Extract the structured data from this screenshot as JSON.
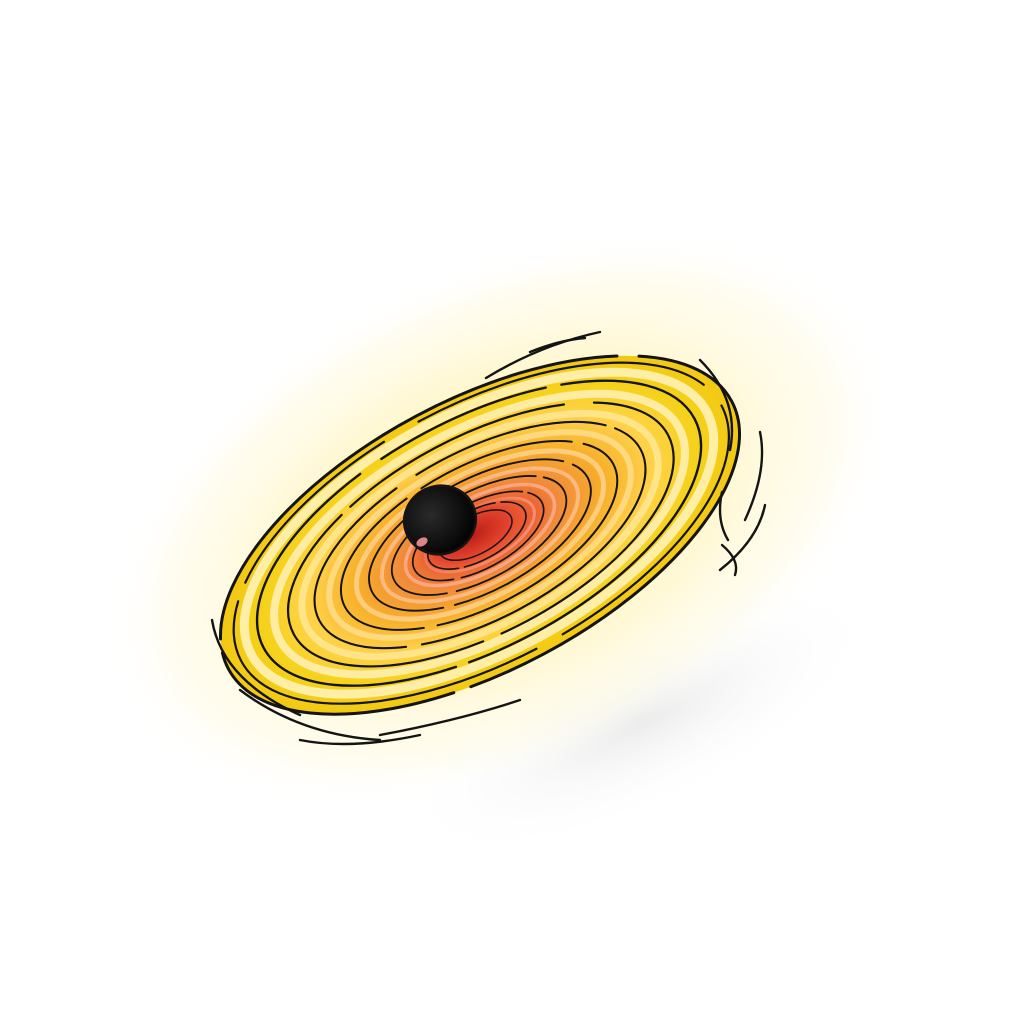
{
  "illustration": {
    "subject": "black-hole-accretion-disk-icon",
    "colors": {
      "background": "#ffffff",
      "halo": "#fff6c8",
      "halo_edge": "#fffbe6",
      "shadow": "#e6e6e6",
      "outer_ring": "#f5d21a",
      "outer_ring_alt": "#ffeb70",
      "mid_ring": "#f7b02b",
      "inner_ring": "#f08a3a",
      "core_ring": "#e5452e",
      "core_deep": "#c8281e",
      "singularity": "#0c0c0c",
      "highlight": "#ff9a9a",
      "outline": "#141414"
    }
  }
}
